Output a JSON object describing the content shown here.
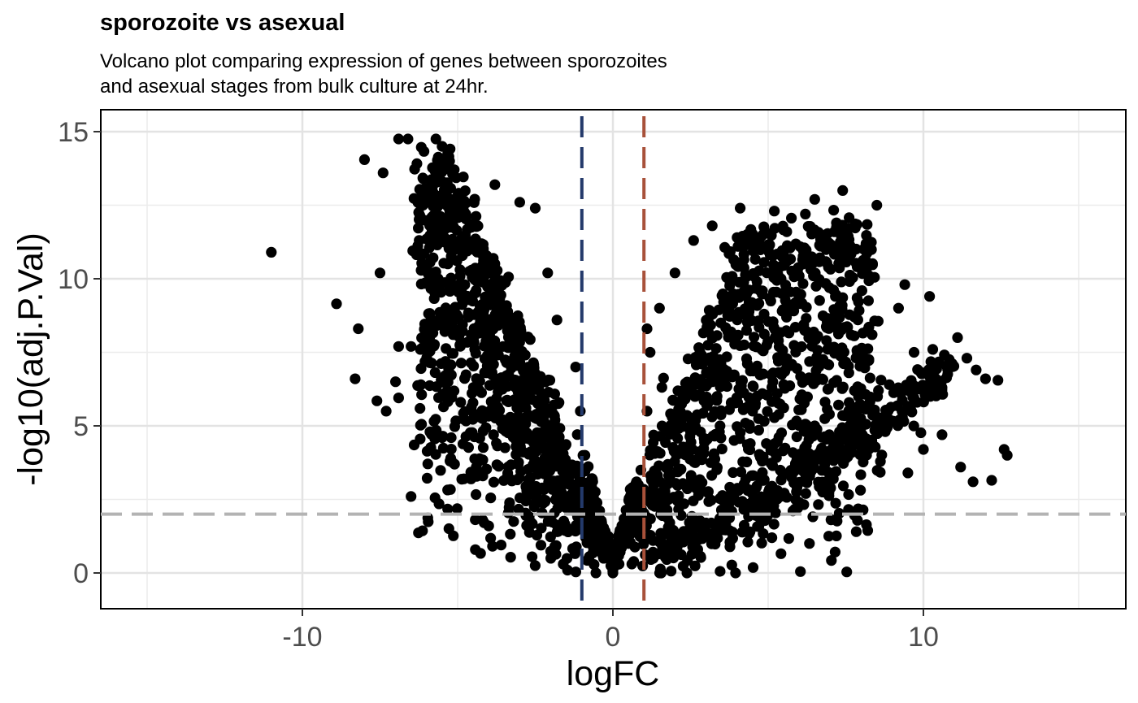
{
  "chart_data": {
    "type": "scatter",
    "title": "sporozoite vs asexual",
    "subtitle_lines": [
      "Volcano plot comparing expression of genes between sporozoites",
      "and asexual stages from bulk culture at 24hr."
    ],
    "xlabel": "logFC",
    "ylabel": "-log10(adj.P.Val)",
    "xlim": [
      -16.5,
      16.5
    ],
    "ylim": [
      -1.2,
      15.9
    ],
    "x_ticks": [
      -10,
      0,
      10
    ],
    "x_tick_labels": [
      "-10",
      "0",
      "10"
    ],
    "y_ticks": [
      0,
      5,
      10,
      15
    ],
    "y_tick_labels": [
      "0",
      "5",
      "10",
      "15"
    ],
    "x_minor_gridlines": [
      -15,
      -5,
      5,
      15
    ],
    "y_minor_gridlines": [
      2.5,
      7.5,
      12.5
    ],
    "grid": true,
    "reference_lines": [
      {
        "orientation": "vertical",
        "value": -1,
        "color": "#243a6b",
        "style": "dashed"
      },
      {
        "orientation": "vertical",
        "value": 1,
        "color": "#a8513a",
        "style": "dashed"
      },
      {
        "orientation": "horizontal",
        "value": 2,
        "color": "#b3b3b3",
        "style": "dashed"
      }
    ],
    "point_color": "#000000",
    "points": [
      [
        -11,
        10.9
      ],
      [
        -8.9,
        9.15
      ],
      [
        -8.2,
        8.3
      ],
      [
        -8.3,
        6.6
      ],
      [
        -7.6,
        5.85
      ],
      [
        -7.3,
        5.5
      ],
      [
        -6.9,
        5.95
      ],
      [
        -7.0,
        6.5
      ],
      [
        -6.4,
        4.35
      ],
      [
        -6.5,
        2.6
      ],
      [
        -5.6,
        2.35
      ],
      [
        -5.5,
        4.6
      ],
      [
        -5.1,
        3.7
      ],
      [
        -8.0,
        14.05
      ],
      [
        -7.4,
        13.6
      ],
      [
        -6.9,
        14.75
      ],
      [
        -6.6,
        14.75
      ],
      [
        -5.7,
        14.75
      ],
      [
        -5.5,
        14.5
      ],
      [
        -7.5,
        10.2
      ],
      [
        -6.9,
        7.7
      ],
      [
        -6.5,
        7.7
      ],
      [
        -6.2,
        7.6
      ],
      [
        -3.6,
        0.95
      ],
      [
        -4.0,
        1.6
      ],
      [
        -2.0,
        0.5
      ],
      [
        -1.6,
        0.3
      ],
      [
        -4.8,
        3.2
      ],
      [
        -4.4,
        3.6
      ],
      [
        -4.9,
        5.8
      ],
      [
        -5.9,
        8.0
      ],
      [
        -6.0,
        10.4
      ],
      [
        -5.5,
        11.5
      ],
      [
        -4.8,
        12.3
      ],
      [
        -3.8,
        13.2
      ],
      [
        -3.0,
        12.6
      ],
      [
        -2.5,
        12.4
      ],
      [
        -2.1,
        10.2
      ],
      [
        -1.8,
        8.6
      ],
      [
        -1.2,
        7.0
      ],
      [
        -1.05,
        5.5
      ],
      [
        -0.9,
        4.0
      ],
      [
        -0.7,
        2.5
      ],
      [
        -0.5,
        1.2
      ],
      [
        -0.3,
        0.5
      ],
      [
        0.0,
        0.0
      ],
      [
        0.2,
        0.3
      ],
      [
        0.5,
        1.0
      ],
      [
        0.7,
        2.0
      ],
      [
        0.9,
        3.5
      ],
      [
        1.1,
        5.5
      ],
      [
        1.2,
        7.5
      ],
      [
        1.1,
        8.3
      ],
      [
        1.5,
        9.0
      ],
      [
        2.0,
        10.2
      ],
      [
        2.6,
        11.3
      ],
      [
        3.2,
        11.8
      ],
      [
        4.0,
        11.4
      ],
      [
        4.1,
        12.4
      ],
      [
        5.2,
        12.3
      ],
      [
        5.6,
        11.6
      ],
      [
        6.2,
        12.2
      ],
      [
        6.5,
        12.7
      ],
      [
        7.2,
        11.9
      ],
      [
        7.4,
        13.0
      ],
      [
        8.5,
        12.5
      ],
      [
        9.4,
        9.8
      ],
      [
        9.2,
        9.0
      ],
      [
        10.2,
        9.4
      ],
      [
        9.7,
        7.5
      ],
      [
        10.3,
        7.6
      ],
      [
        11.1,
        8.0
      ],
      [
        11.4,
        7.3
      ],
      [
        11.7,
        6.9
      ],
      [
        12.0,
        6.6
      ],
      [
        12.4,
        6.55
      ],
      [
        12.6,
        4.2
      ],
      [
        12.7,
        4.0
      ],
      [
        11.2,
        3.6
      ],
      [
        11.6,
        3.1
      ],
      [
        12.2,
        3.15
      ],
      [
        10.6,
        4.7
      ],
      [
        9.5,
        3.4
      ],
      [
        10.0,
        4.2
      ],
      [
        7.1,
        3.2
      ],
      [
        5.3,
        2.8
      ],
      [
        4.4,
        2.1
      ],
      [
        3.0,
        1.7
      ],
      [
        2.0,
        1.2
      ],
      [
        1.3,
        0.5
      ],
      [
        6.5,
        5.0
      ],
      [
        7.8,
        5.5
      ],
      [
        8.9,
        6.4
      ],
      [
        9.8,
        5.8
      ],
      [
        10.6,
        6.3
      ],
      [
        4.5,
        5.5
      ],
      [
        3.2,
        6.5
      ],
      [
        2.5,
        4.8
      ],
      [
        2.3,
        3.0
      ],
      [
        1.6,
        2.6
      ]
    ]
  }
}
